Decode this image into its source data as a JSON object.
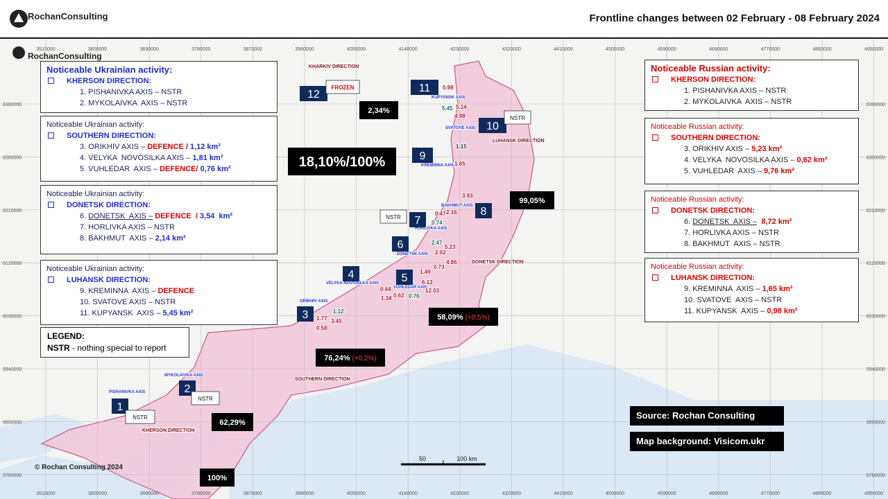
{
  "header": {
    "brand": "RochanConsulting",
    "title": "Frontline changes between 02 February - 08 February 2024"
  },
  "map_brand": "RochanConsulting",
  "grid_x": [
    "3510000",
    "3600000",
    "3690000",
    "3780000",
    "3870000",
    "3960000",
    "4050000",
    "4140000",
    "4230000",
    "4320000",
    "4410000",
    "4500000",
    "4590000",
    "4680000",
    "4770000",
    "4860000",
    "4950000"
  ],
  "grid_y": [
    "6390000",
    "6300000",
    "6210000",
    "6120000",
    "6030000",
    "5940000",
    "5850000",
    "5760000"
  ],
  "ukrainian_panels": [
    {
      "heading": "Noticeable Ukrainian activity:",
      "direction": "KHERSON  DIRECTION:",
      "items": [
        [
          {
            "text": "1. PISHANIVKA AXIS – NSTR"
          }
        ],
        [
          {
            "text": "2. MYKOLAIVKA  AXIS – NSTR"
          }
        ]
      ]
    },
    {
      "heading": "Noticeable Ukrainian activity:",
      "direction": "SOUTHERN  DIRECTION:",
      "items": [
        [
          {
            "text": "3. ORIKHIV AXIS – "
          },
          {
            "text": "DEFENCE / ",
            "color": "red"
          },
          {
            "text": "1,12 km²",
            "color": "blue"
          }
        ],
        [
          {
            "text": "4. VELYKA  NOVOSILKA AXIS – "
          },
          {
            "text": "1,81 km²",
            "color": "blue"
          }
        ],
        [
          {
            "text": "5. VUHLEDAR  AXIS – "
          },
          {
            "text": "DEFENCE/ ",
            "color": "red"
          },
          {
            "text": "0,76 km²",
            "color": "blue"
          }
        ]
      ]
    },
    {
      "heading": "Noticeable Ukrainian activity:",
      "direction": "DONETSK DIRECTION:",
      "items": [
        [
          {
            "text": "6. "
          },
          {
            "text": "DONETSK  AXIS –",
            "underline": true
          },
          {
            "text": " DEFENCE ",
            "color": "red"
          },
          {
            "text": " / ",
            "color": "red"
          },
          {
            "text": "3,54  km²",
            "color": "blue"
          }
        ],
        [
          {
            "text": "7. HORLIVKA AXIS – NSTR"
          }
        ],
        [
          {
            "text": "8. BAKHMUT  AXIS – "
          },
          {
            "text": "2,14 km²",
            "color": "blue"
          }
        ]
      ]
    },
    {
      "heading": "Noticeable Ukrainian activity:",
      "direction": "LUHANSK DIRECTION:",
      "items": [
        [
          {
            "text": "9. KREMINNA  AXIS – "
          },
          {
            "text": "DEFENCE",
            "color": "red"
          }
        ],
        [
          {
            "text": "10. SVATOVE AXIS – NSTR"
          }
        ],
        [
          {
            "text": "11. KUPYANSK  AXIS – "
          },
          {
            "text": "5,45 km²",
            "color": "blue"
          }
        ]
      ]
    }
  ],
  "russian_panels": [
    {
      "heading": "Noticeable Russian activity:",
      "direction": "KHERSON  DIRECTION:",
      "items": [
        [
          {
            "text": "1. PISHANIVKA AXIS – NSTR"
          }
        ],
        [
          {
            "text": "2. MYKOLAIVKA  AXIS – NSTR"
          }
        ]
      ]
    },
    {
      "heading": "Noticeable Russian activity:",
      "direction": "SOUTHERN  DIRECTION:",
      "items": [
        [
          {
            "text": "3. ORIKHIV AXIS – "
          },
          {
            "text": "5,23 km²",
            "color": "red"
          }
        ],
        [
          {
            "text": "4. VELYKA  NOVOSILKA AXIS – "
          },
          {
            "text": "0,62 km²",
            "color": "red"
          }
        ],
        [
          {
            "text": "5. VUHLEDAR  AXIS – "
          },
          {
            "text": "9,76 km²",
            "color": "red"
          }
        ]
      ]
    },
    {
      "heading": "Noticeable Russian activity:",
      "direction": "DONETSK DIRECTION:",
      "items": [
        [
          {
            "text": "6. "
          },
          {
            "text": "DONETSK  AXIS –",
            "underline": true
          },
          {
            "text": "  "
          },
          {
            "text": "8,72 km²",
            "color": "red"
          }
        ],
        [
          {
            "text": "7. HORLIVKA AXIS – NSTR"
          }
        ],
        [
          {
            "text": "8. BAKHMUT  AXIS – NSTR"
          }
        ]
      ]
    },
    {
      "heading": "Noticeable Russian activity:",
      "direction": "LUHANSK DIRECTION:",
      "items": [
        [
          {
            "text": "9. KREMINNA  AXIS – "
          },
          {
            "text": "1,65 km²",
            "color": "red"
          }
        ],
        [
          {
            "text": "10. SVATOVE  AXIS – NSTR"
          }
        ],
        [
          {
            "text": "11. KUPYANSK  AXIS – "
          },
          {
            "text": "0,98 km²",
            "color": "red"
          }
        ]
      ]
    }
  ],
  "markers": [
    "1",
    "2",
    "3",
    "4",
    "5",
    "6",
    "7",
    "8",
    "9",
    "10",
    "11",
    "12"
  ],
  "tags": [
    {
      "text": "FROZEN",
      "color": "red"
    },
    {
      "text": "NSTR"
    },
    {
      "text": "NSTR"
    },
    {
      "text": "NSTR"
    },
    {
      "text": "NSTR"
    }
  ],
  "percent_boxes": [
    {
      "text": "2,34%"
    },
    {
      "text": "18,10%/100%"
    },
    {
      "text": "99,05%"
    },
    {
      "text": "58,09%",
      "change": "(+0,5%)"
    },
    {
      "text": "76,24%",
      "change": "(+0,2%)"
    },
    {
      "text": "62,29%"
    },
    {
      "text": "100%"
    }
  ],
  "place_labels": [
    {
      "text": "KHARKIV DIRECTION",
      "kind": "direction"
    },
    {
      "text": "KUPYANSK AXIS",
      "kind": "axis"
    },
    {
      "text": "SVATOVE AXIS",
      "kind": "axis"
    },
    {
      "text": "LUHANSK DIRECTION",
      "kind": "direction"
    },
    {
      "text": "KREMINNA AXIS",
      "kind": "axis"
    },
    {
      "text": "BAKHMUT AXIS",
      "kind": "axis"
    },
    {
      "text": "HORLIVKA AXIS",
      "kind": "axis"
    },
    {
      "text": "DONETSK AXIS",
      "kind": "axis"
    },
    {
      "text": "DONETSK DIRECTION",
      "kind": "direction"
    },
    {
      "text": "VELYKA NOVOSILKA AXIS",
      "kind": "axis"
    },
    {
      "text": "VUHLEDAR AXIS",
      "kind": "axis"
    },
    {
      "text": "ORIKHIV AXIS",
      "kind": "axis"
    },
    {
      "text": "SOUTHERN DIRECTION",
      "kind": "direction"
    },
    {
      "text": "MYKOLAIVKA AXIS",
      "kind": "axis"
    },
    {
      "text": "PISHANIVKA AXIS",
      "kind": "axis"
    },
    {
      "text": "KHERSON DIRECTION",
      "kind": "direction"
    }
  ],
  "gain_values": [
    {
      "text": "0.98",
      "color": "red"
    },
    {
      "text": "5.45",
      "color": "teal"
    },
    {
      "text": "5.14",
      "color": "red"
    },
    {
      "text": "4.98",
      "color": "red"
    },
    {
      "text": "1.15",
      "color": "dark"
    },
    {
      "text": "1.65",
      "color": "red"
    },
    {
      "text": "3.93",
      "color": "red"
    },
    {
      "text": "0.47",
      "color": "red"
    },
    {
      "text": "2.16",
      "color": "red"
    },
    {
      "text": "0.74",
      "color": "teal"
    },
    {
      "text": "2.47",
      "color": "teal"
    },
    {
      "text": "5.23",
      "color": "red"
    },
    {
      "text": "2.02",
      "color": "red"
    },
    {
      "text": "4.86",
      "color": "red"
    },
    {
      "text": "0.73",
      "color": "red"
    },
    {
      "text": "1.49",
      "color": "red"
    },
    {
      "text": "6.13",
      "color": "red"
    },
    {
      "text": "12.03",
      "color": "red"
    },
    {
      "text": "0.44",
      "color": "red"
    },
    {
      "text": "1.34",
      "color": "red"
    },
    {
      "text": "0.62",
      "color": "red"
    },
    {
      "text": "0.76",
      "color": "teal"
    },
    {
      "text": "1.12",
      "color": "teal"
    },
    {
      "text": "1.77",
      "color": "red"
    },
    {
      "text": "3.45",
      "color": "red"
    },
    {
      "text": "0.58",
      "color": "red"
    }
  ],
  "legend": {
    "title": "LEGEND:",
    "key": "NSTR",
    "description": "- nothing special to report"
  },
  "sources": [
    "Source: Rochan Consulting",
    "Map background: Visicom.ukr"
  ],
  "copyright": "© Rochan Consulting 2024",
  "scale": [
    "50",
    "100 km"
  ]
}
